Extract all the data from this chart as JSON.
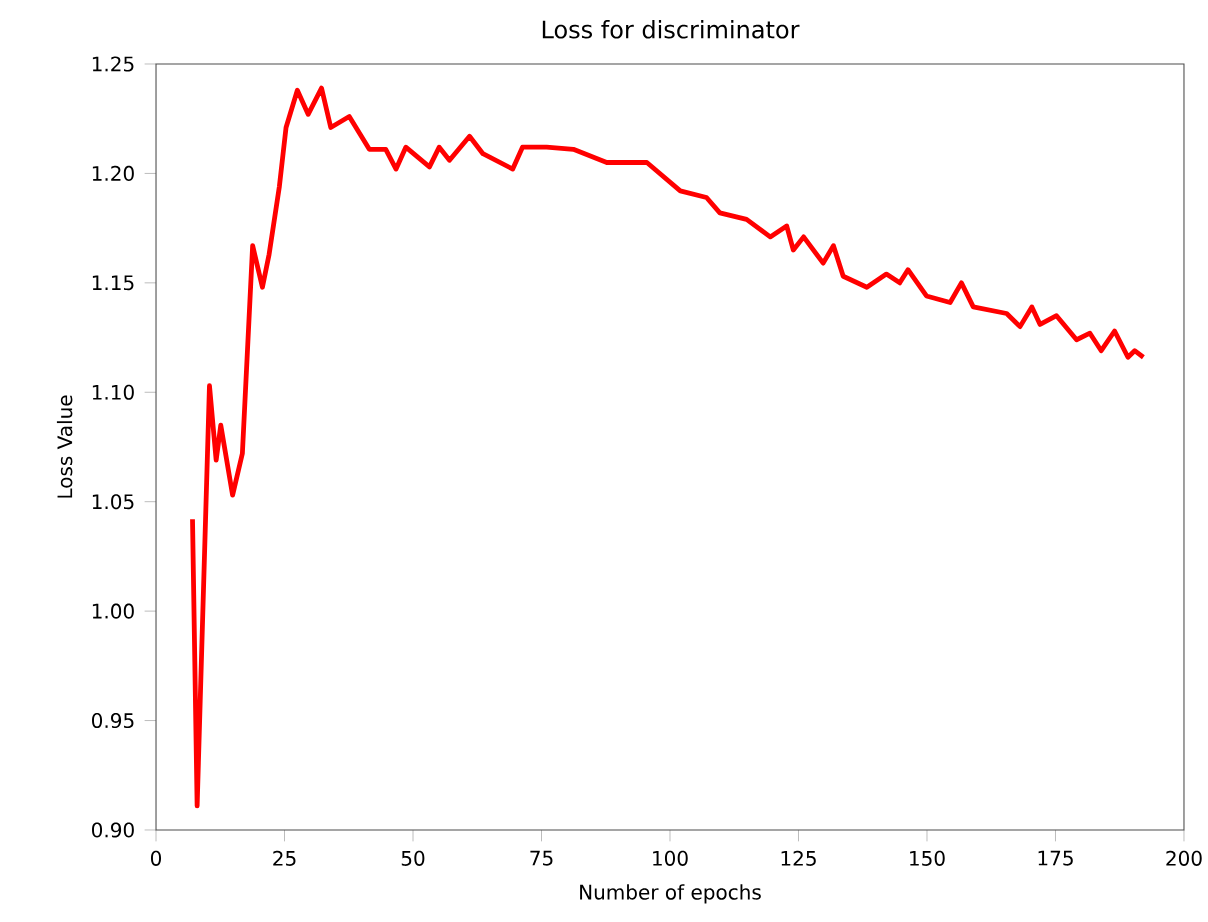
{
  "chart_data": {
    "type": "line",
    "title": "Loss for discriminator",
    "xlabel": "Number of epochs",
    "ylabel": "Loss Value",
    "xlim": [
      0,
      200
    ],
    "xticks": [
      0,
      25,
      50,
      75,
      100,
      125,
      150,
      175,
      200
    ],
    "ylim": [
      0.9,
      1.25
    ],
    "yticks": [
      {
        "value": 0.9,
        "label": "0.90"
      },
      0.95,
      {
        "value": 1.0,
        "label": "1.00"
      },
      1.05,
      {
        "value": 1.1,
        "label": "1.10"
      },
      1.15,
      {
        "value": 1.2,
        "label": "1.20"
      },
      1.25
    ],
    "marker": "none",
    "line_style": "solid",
    "x": [
      7.1,
      8.0,
      10.4,
      11.7,
      12.6,
      14.9,
      16.8,
      18.8,
      20.7,
      22.0,
      24.0,
      25.3,
      27.5,
      29.6,
      32.2,
      34.0,
      37.6,
      41.5,
      44.7,
      46.7,
      48.6,
      53.2,
      55.1,
      57.1,
      61.0,
      63.6,
      69.4,
      71.3,
      76.0,
      81.2,
      87.7,
      95.5,
      102.0,
      107.1,
      109.7,
      114.9,
      119.5,
      122.7,
      124.0,
      126.0,
      129.8,
      131.8,
      133.7,
      138.3,
      142.1,
      144.7,
      146.3,
      149.9,
      154.5,
      156.7,
      159.0,
      165.5,
      168.1,
      170.4,
      172.0,
      175.2,
      179.1,
      181.7,
      183.9,
      186.5,
      189.1,
      190.4,
      192.1
    ],
    "series": [
      {
        "color": "#ff0000",
        "values": [
          1.042,
          0.911,
          1.103,
          1.069,
          1.085,
          1.053,
          1.072,
          1.167,
          1.148,
          1.163,
          1.194,
          1.221,
          1.238,
          1.227,
          1.239,
          1.221,
          1.226,
          1.211,
          1.211,
          1.202,
          1.212,
          1.203,
          1.212,
          1.206,
          1.217,
          1.209,
          1.202,
          1.212,
          1.212,
          1.211,
          1.205,
          1.205,
          1.192,
          1.189,
          1.182,
          1.179,
          1.171,
          1.176,
          1.165,
          1.171,
          1.159,
          1.167,
          1.153,
          1.148,
          1.154,
          1.15,
          1.156,
          1.144,
          1.141,
          1.15,
          1.139,
          1.136,
          1.13,
          1.139,
          1.131,
          1.135,
          1.124,
          1.127,
          1.119,
          1.128,
          1.116,
          1.119,
          1.116
        ]
      }
    ]
  }
}
